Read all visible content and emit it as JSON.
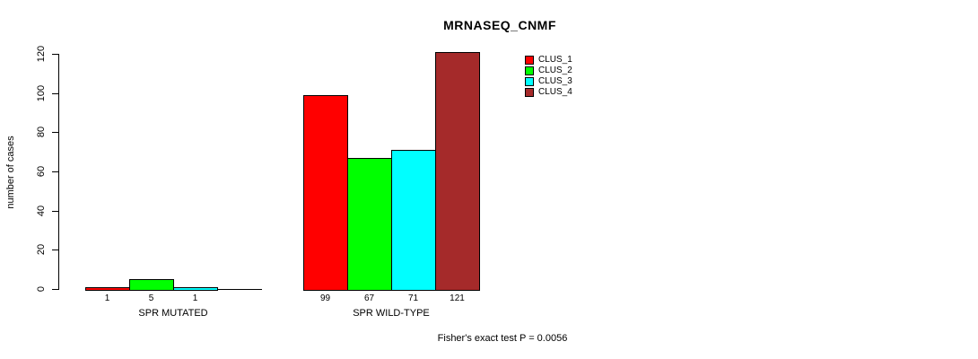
{
  "chart_data": {
    "type": "bar",
    "title": "MRNASEQ_CNMF",
    "ylabel": "number of cases",
    "xlabel": "",
    "categories": [
      "SPR MUTATED",
      "SPR WILD-TYPE"
    ],
    "series": [
      {
        "name": "CLUS_1",
        "color": "#FF0000",
        "values": [
          1,
          99
        ]
      },
      {
        "name": "CLUS_2",
        "color": "#00FF00",
        "values": [
          5,
          67
        ]
      },
      {
        "name": "CLUS_3",
        "color": "#00FFFF",
        "values": [
          1,
          71
        ]
      },
      {
        "name": "CLUS_4",
        "color": "#A52A2A",
        "values": [
          0,
          121
        ]
      }
    ],
    "yticks": [
      0,
      20,
      40,
      60,
      80,
      100,
      120
    ],
    "ylim": [
      0,
      120
    ],
    "bar_value_labels": [
      [
        "1",
        "5",
        "1",
        ""
      ],
      [
        "99",
        "67",
        "71",
        "121"
      ]
    ],
    "legend_position": "top-right",
    "grid": false,
    "background": "#FFFFFF",
    "axis_color": "#000000",
    "annotation": "Fisher's exact test P = 0.0056"
  }
}
